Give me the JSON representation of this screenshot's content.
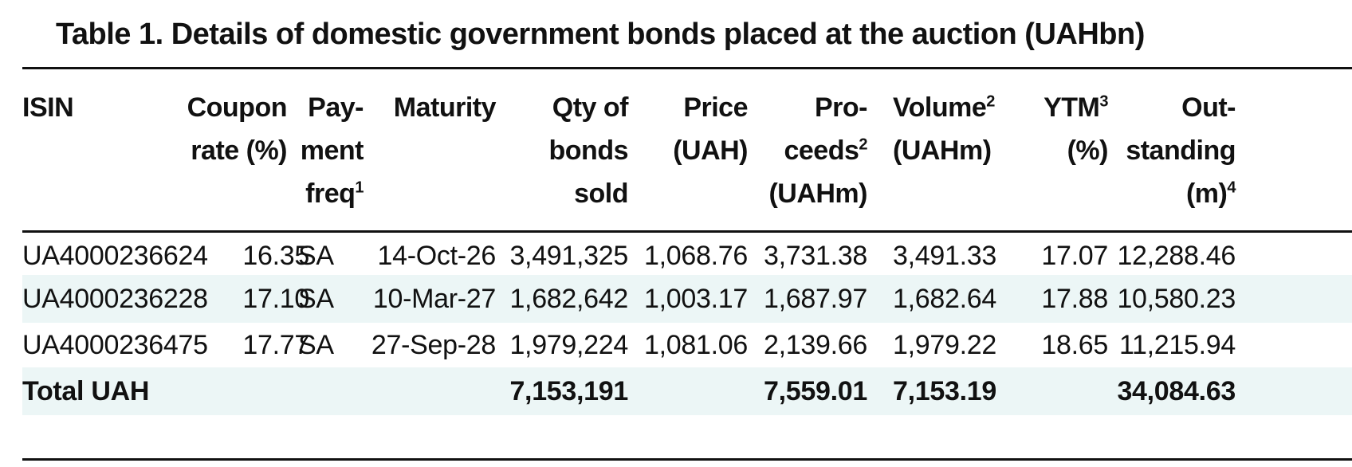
{
  "title": "Table 1. Details of domestic government bonds placed at the auction (UAHbn)",
  "headers": {
    "isin": "ISIN",
    "coupon_1": "Coupon",
    "coupon_2": "rate (%)",
    "payfreq_1": "Pay-",
    "payfreq_2": "ment",
    "payfreq_3": "freq",
    "payfreq_sup": "1",
    "maturity": "Maturity",
    "qty_1": "Qty of",
    "qty_2": "bonds",
    "qty_3": "sold",
    "price_1": "Price",
    "price_2": "(UAH)",
    "proceeds_1": "Pro-",
    "proceeds_2": "ceeds",
    "proceeds_sup": "2",
    "proceeds_3": "(UAHm)",
    "volume_1": "Volume",
    "volume_sup": "2",
    "volume_2": "(UAHm)",
    "ytm_1": "YTM",
    "ytm_sup": "3",
    "ytm_2": "(%)",
    "outstanding_1": "Out-",
    "outstanding_2": "standing",
    "outstanding_3": "(m)",
    "outstanding_sup": "4"
  },
  "rows": [
    {
      "isin": "UA4000236624",
      "coupon": "16.35",
      "payfreq": "SA",
      "maturity": "14-Oct-26",
      "qty": "3,491,325",
      "price": "1,068.76",
      "proceeds": "3,731.38",
      "volume": "3,491.33",
      "ytm": "17.07",
      "outstanding": "12,288.46"
    },
    {
      "isin": "UA4000236228",
      "coupon": "17.10",
      "payfreq": "SA",
      "maturity": "10-Mar-27",
      "qty": "1,682,642",
      "price": "1,003.17",
      "proceeds": "1,687.97",
      "volume": "1,682.64",
      "ytm": "17.88",
      "outstanding": "10,580.23"
    },
    {
      "isin": "UA4000236475",
      "coupon": "17.77",
      "payfreq": "SA",
      "maturity": "27-Sep-28",
      "qty": "1,979,224",
      "price": "1,081.06",
      "proceeds": "2,139.66",
      "volume": "1,979.22",
      "ytm": "18.65",
      "outstanding": "11,215.94"
    }
  ],
  "total": {
    "label": "Total UAH",
    "qty": "7,153,191",
    "proceeds": "7,559.01",
    "volume": "7,153.19",
    "outstanding": "34,084.63"
  },
  "colors": {
    "shade": "#ecf6f6",
    "text": "#111111"
  }
}
